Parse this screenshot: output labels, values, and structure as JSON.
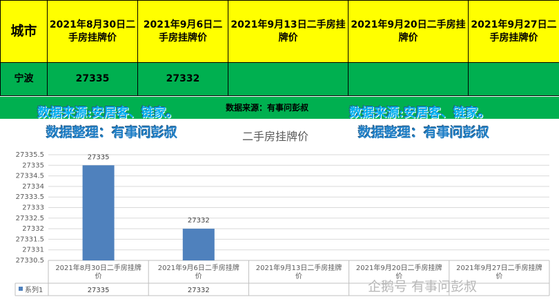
{
  "table": {
    "header": [
      "城市",
      "2021年8月30日二手房挂牌价",
      "2021年9月6日二手房挂牌价",
      "2021年9月13日二手房挂牌价",
      "2021年9月20日二手房挂牌价",
      "2021年9月27日二手房挂牌价"
    ],
    "rows": [
      [
        "宁波",
        "27335",
        "27332",
        "",
        "",
        ""
      ]
    ]
  },
  "source_label": "数据来源：有事问彭叔",
  "watermarks": {
    "source_left": "数据来源:安居客、链家。",
    "source_right": "数据来源:安居客、链家。",
    "organizer_left": "数据整理：有事问彭叔",
    "organizer_right": "数据整理：有事问彭叔"
  },
  "brand_watermark": "企鹅号 有事问彭叔",
  "chart_data": {
    "type": "bar",
    "title": "二手房挂牌价",
    "categories": [
      "2021年8月30日二手房挂牌价",
      "2021年9月6日二手房挂牌价",
      "2021年9月13日二手房挂牌价",
      "2021年9月20日二手房挂牌价",
      "2021年9月27日二手房挂牌价"
    ],
    "series": [
      {
        "name": "系列1",
        "values": [
          27335,
          27332,
          null,
          null,
          null
        ],
        "color": "#4f81bd"
      }
    ],
    "ylim": [
      27330.5,
      27335.5
    ],
    "ystep": 0.5,
    "data_table": true,
    "grid": true
  }
}
